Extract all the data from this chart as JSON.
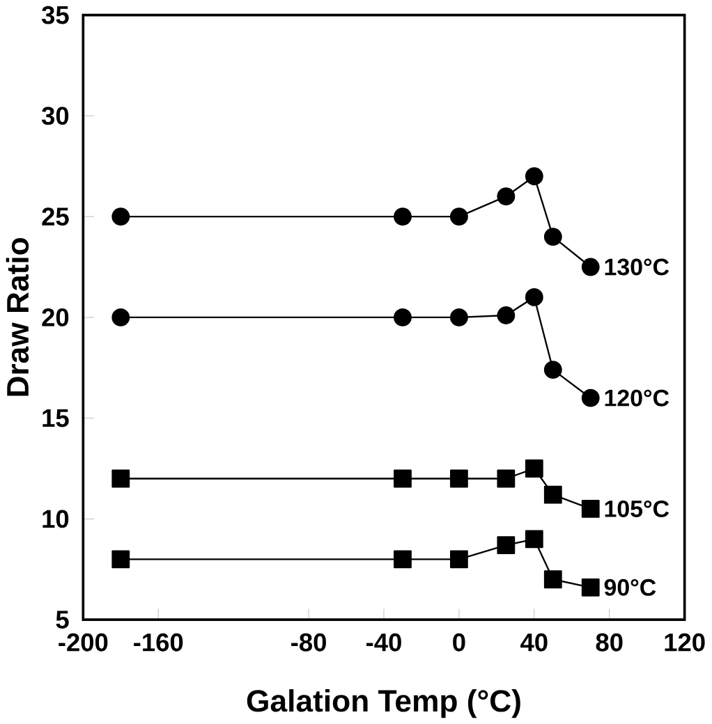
{
  "chart_data": {
    "type": "line",
    "xlabel": "Galation Temp (°C)",
    "ylabel": "Draw Ratio",
    "xlim": [
      -200,
      120
    ],
    "xticks": [
      -200,
      -160,
      -80,
      -40,
      0,
      40,
      80,
      120
    ],
    "ylim": [
      5,
      35
    ],
    "yticks": [
      5,
      10,
      15,
      20,
      25,
      30,
      35
    ],
    "x": [
      -180,
      -30,
      0,
      25,
      40,
      50,
      70
    ],
    "line_style": "solid",
    "grid": false,
    "legend": false,
    "series": [
      {
        "name": "130°C",
        "color": "#000000",
        "marker": "circle",
        "values": [
          25,
          25,
          25,
          26,
          27,
          24,
          22.5
        ]
      },
      {
        "name": "120°C",
        "color": "#000000",
        "marker": "circle",
        "values": [
          20,
          20,
          20,
          20.1,
          21,
          17.4,
          16
        ]
      },
      {
        "name": "105°C",
        "color": "#000000",
        "marker": "square",
        "values": [
          12,
          12,
          12,
          12,
          12.5,
          11.2,
          10.5
        ]
      },
      {
        "name": "90°C",
        "color": "#000000",
        "marker": "square",
        "values": [
          8,
          8,
          8,
          8.7,
          9,
          7,
          6.6
        ]
      }
    ]
  }
}
